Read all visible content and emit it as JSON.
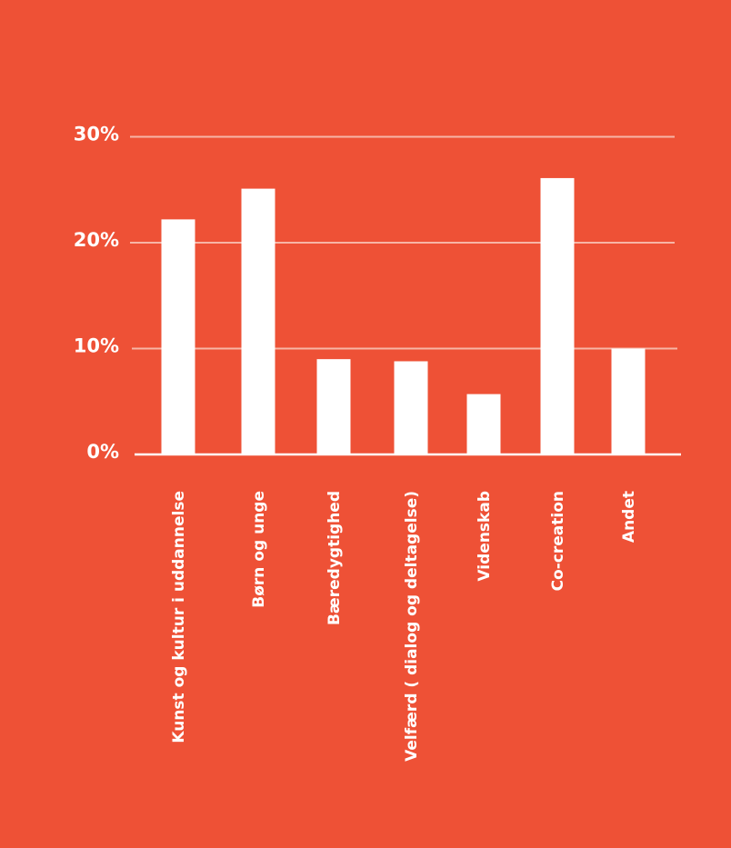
{
  "background_color": "#ee5136",
  "bar_color": "#ffffff",
  "gridline_color": "#f7b5a6",
  "chart_data": {
    "type": "bar",
    "categories": [
      "Kunst og kultur i uddannelse",
      "Børn og unge",
      "Bæredygtighed",
      "Velfærd ( dialog og deltagelse)",
      "Videnskab",
      "Co-creation",
      "Andet"
    ],
    "values": [
      22.2,
      25.1,
      9.0,
      8.8,
      5.7,
      26.1,
      10.0
    ],
    "title": "",
    "xlabel": "",
    "ylabel": "",
    "ylim": [
      0,
      30
    ],
    "yticks": [
      {
        "value": 0,
        "label": "0%"
      },
      {
        "value": 10,
        "label": "10%"
      },
      {
        "value": 20,
        "label": "20%"
      },
      {
        "value": 30,
        "label": "30%"
      }
    ],
    "grid": true,
    "legend": "none"
  }
}
